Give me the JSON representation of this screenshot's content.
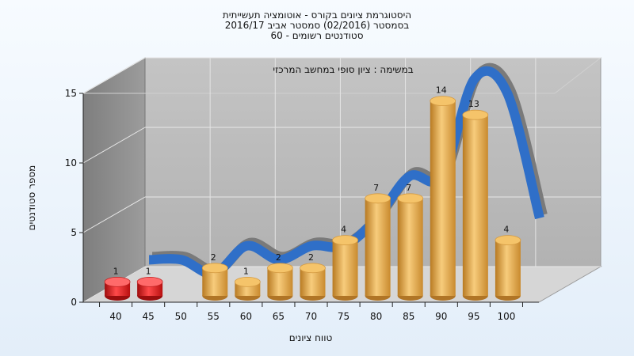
{
  "colors": {
    "highlight": "#e01818",
    "bar": "#e0a040",
    "curve": "#2f6fc8",
    "curve_back": "#7a7a7a",
    "wall": "#b9b9b9",
    "side_wall": "#8f8f8f",
    "floor": "#d9d9d9"
  },
  "chart_data": {
    "type": "bar",
    "title_lines": [
      "היסטוגרמת ציונים בקורס - אוטומציה תעשייתית",
      "בסמסטר (02/2016) סמסטר אביב 2016/17",
      "סטודנטים רשומים - 60"
    ],
    "annotation": "במשימה : ציון סופי במחשב המרכזי",
    "xlabel": "טווח ציונים",
    "ylabel": "מספר סטודנטים",
    "ylim": [
      0,
      15
    ],
    "yticks": [
      0,
      5,
      10,
      15
    ],
    "x_ticks": [
      "40",
      "45",
      "50",
      "55",
      "60",
      "65",
      "70",
      "75",
      "80",
      "85",
      "90",
      "95",
      "100"
    ],
    "categories": [
      "40",
      "45",
      "55",
      "60",
      "65",
      "70",
      "75",
      "80",
      "85",
      "90",
      "95",
      "100"
    ],
    "values": [
      1,
      1,
      2,
      1,
      2,
      2,
      4,
      7,
      7,
      14,
      13,
      4
    ],
    "highlighted": [
      "40",
      "45"
    ],
    "grid": true,
    "legend": "none",
    "style": "3d-cylinder"
  }
}
